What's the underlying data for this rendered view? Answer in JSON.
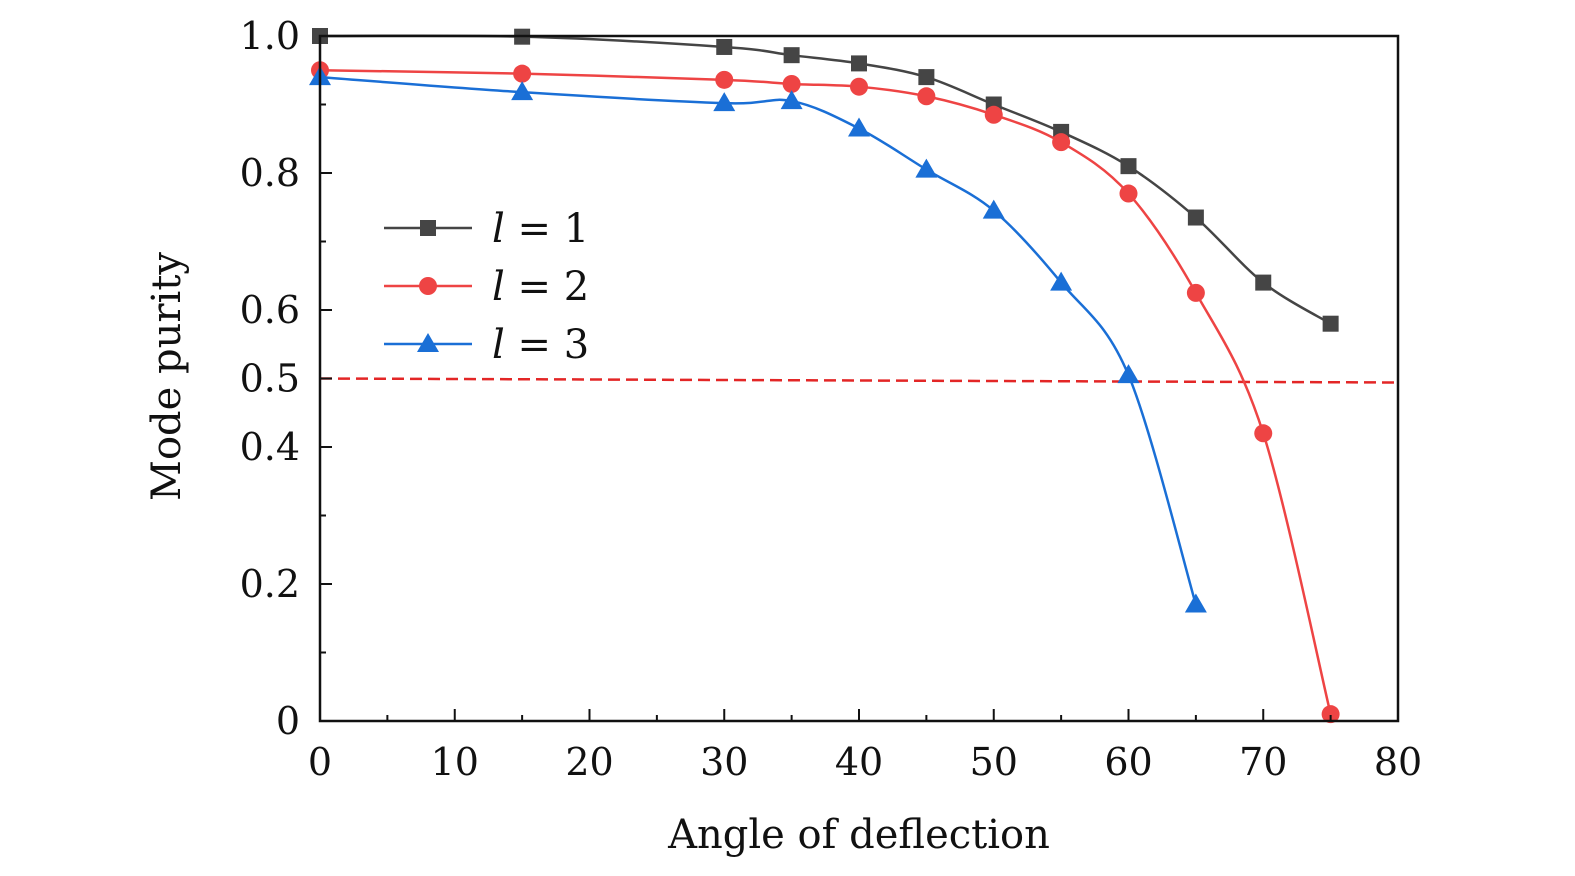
{
  "chart_data": {
    "type": "line",
    "xlabel": "Angle of deflection",
    "ylabel": "Mode purity",
    "xlim": [
      0,
      80
    ],
    "ylim": [
      0,
      1.0
    ],
    "x_ticks": [
      0,
      10,
      20,
      30,
      40,
      50,
      60,
      70,
      80
    ],
    "x_tick_labels": [
      "0",
      "10",
      "20",
      "30",
      "40",
      "50",
      "60",
      "70",
      "80"
    ],
    "x_minor_ticks": [
      5,
      15,
      25,
      35,
      45,
      55,
      65,
      75
    ],
    "y_ticks": [
      0,
      0.2,
      0.4,
      0.5,
      0.6,
      0.8,
      1.0
    ],
    "y_tick_labels": [
      "0",
      "0.2",
      "0.4",
      "0.5",
      "0.6",
      "0.8",
      "1.0"
    ],
    "y_minor_ticks": [
      0.1,
      0.3,
      0.7,
      0.9
    ],
    "grid": false,
    "legend_position": "left",
    "threshold": {
      "y": 0.5,
      "color": "#e32626",
      "style": "dashed"
    },
    "series": [
      {
        "name": "l = 1",
        "legend_var": "l",
        "legend_rest": " = 1",
        "color": "#454545",
        "marker": "square",
        "x": [
          0,
          15,
          30,
          35,
          40,
          45,
          50,
          55,
          60,
          65,
          70,
          75
        ],
        "y": [
          1.0,
          0.999,
          0.984,
          0.972,
          0.96,
          0.94,
          0.9,
          0.86,
          0.81,
          0.735,
          0.64,
          0.58
        ]
      },
      {
        "name": "l = 2",
        "legend_var": "l",
        "legend_rest": " = 2",
        "color": "#ee4444",
        "marker": "circle",
        "x": [
          0,
          15,
          30,
          35,
          40,
          45,
          50,
          55,
          60,
          65,
          70,
          75
        ],
        "y": [
          0.95,
          0.945,
          0.936,
          0.93,
          0.926,
          0.912,
          0.885,
          0.845,
          0.77,
          0.625,
          0.42,
          0.01
        ]
      },
      {
        "name": "l = 3",
        "legend_var": "l",
        "legend_rest": " = 3",
        "color": "#1a6fd6",
        "marker": "triangle",
        "x": [
          0,
          15,
          30,
          35,
          40,
          45,
          50,
          55,
          60,
          65
        ],
        "y": [
          0.94,
          0.918,
          0.902,
          0.905,
          0.865,
          0.805,
          0.745,
          0.64,
          0.505,
          0.17
        ]
      }
    ]
  }
}
